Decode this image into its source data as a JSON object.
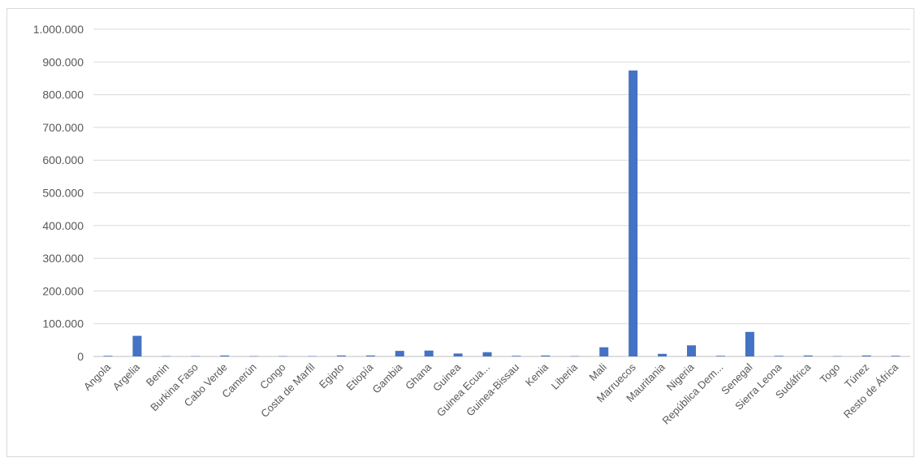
{
  "chart_data": {
    "type": "bar",
    "title": "",
    "xlabel": "",
    "ylabel": "",
    "ylim": [
      0,
      1000000
    ],
    "y_ticks": [
      "0",
      "100.000",
      "200.000",
      "300.000",
      "400.000",
      "500.000",
      "600.000",
      "700.000",
      "800.000",
      "900.000",
      "1.000.000"
    ],
    "grid": true,
    "legend": "none",
    "bar_color": "#4472c4",
    "categories": [
      "Angola",
      "Argelia",
      "Benin",
      "Burkina Faso",
      "Cabo Verde",
      "Camerún",
      "Congo",
      "Costa de Marfil",
      "Egipto",
      "Etiopía",
      "Gambia",
      "Ghana",
      "Guinea",
      "Guinea Ecua...",
      "Guinea-Bissau",
      "Kenia",
      "Liberia",
      "Mali",
      "Marruecos",
      "Mauritania",
      "Nigeria",
      "República Dem...",
      "Senegal",
      "Sierra Leona",
      "Sudáfrica",
      "Togo",
      "Túnez",
      "Resto de África"
    ],
    "values": [
      2000,
      63000,
      1000,
      1000,
      3000,
      1000,
      1000,
      1000,
      3000,
      3000,
      17000,
      18000,
      9000,
      13000,
      2000,
      3000,
      1000,
      28000,
      874000,
      8000,
      34000,
      2000,
      75000,
      2000,
      3000,
      1000,
      3000,
      2000
    ]
  }
}
